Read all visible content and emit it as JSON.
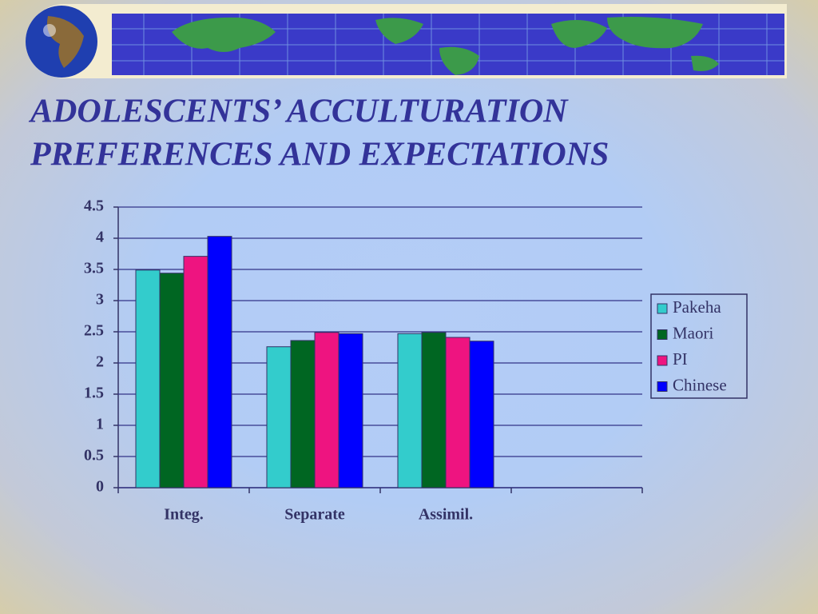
{
  "chart_data": {
    "type": "bar",
    "title": [
      "ADOLESCENTS’ ACCULTURATION",
      "PREFERENCES AND EXPECTATIONS"
    ],
    "categories": [
      "Integ.",
      "Separate",
      "Assimil.",
      null
    ],
    "series": [
      {
        "name": "Pakeha",
        "color": "#33cccc",
        "values": [
          3.49,
          2.26,
          2.47,
          null
        ]
      },
      {
        "name": "Maori",
        "color": "#006622",
        "values": [
          3.44,
          2.36,
          2.49,
          null
        ]
      },
      {
        "name": "PI",
        "color": "#ee1480",
        "values": [
          3.71,
          2.49,
          2.41,
          null
        ]
      },
      {
        "name": "Chinese",
        "color": "#0000ff",
        "values": [
          4.03,
          2.47,
          2.35,
          null
        ]
      }
    ],
    "ylim": [
      0,
      4.5
    ],
    "yticks": [
      0,
      0.5,
      1,
      1.5,
      2,
      2.5,
      3,
      3.5,
      4,
      4.5
    ],
    "grid": true,
    "legend": "right"
  }
}
